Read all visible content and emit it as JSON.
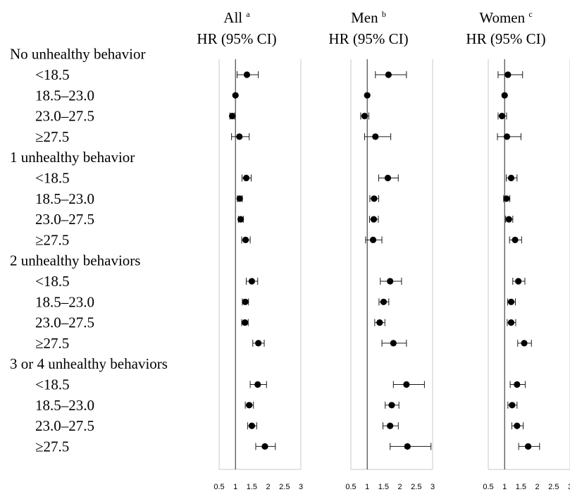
{
  "chart_data": {
    "type": "forest",
    "panels": [
      {
        "name": "All",
        "superscript": "a",
        "subtitle": "HR (95% CI)"
      },
      {
        "name": "Men",
        "superscript": "b",
        "subtitle": "HR (95% CI)"
      },
      {
        "name": "Women",
        "superscript": "c",
        "subtitle": "HR (95% CI)"
      }
    ],
    "x_ticks": [
      "0.5",
      "1",
      "1.5",
      "2",
      "2.5",
      "3"
    ],
    "xlim": [
      0.5,
      3
    ],
    "reference_line": 1,
    "groups": [
      {
        "label": "No unhealthy behavior",
        "rows": [
          {
            "label": "<18.5",
            "values": [
              [
                1.35,
                1.05,
                1.7
              ],
              [
                1.65,
                1.25,
                2.2
              ],
              [
                1.1,
                0.8,
                1.55
              ]
            ]
          },
          {
            "label": "18.5–23.0",
            "values": [
              [
                1.0,
                1.0,
                1.0
              ],
              [
                1.0,
                1.0,
                1.0
              ],
              [
                1.0,
                1.0,
                1.0
              ]
            ]
          },
          {
            "label": "23.0–27.5",
            "values": [
              [
                0.9,
                0.83,
                0.97
              ],
              [
                0.92,
                0.8,
                1.05
              ],
              [
                0.92,
                0.8,
                1.06
              ]
            ]
          },
          {
            "label": "≥27.5",
            "values": [
              [
                1.12,
                0.88,
                1.42
              ],
              [
                1.25,
                0.92,
                1.72
              ],
              [
                1.07,
                0.78,
                1.5
              ]
            ]
          }
        ]
      },
      {
        "label": "1 unhealthy behavior",
        "rows": [
          {
            "label": "<18.5",
            "values": [
              [
                1.33,
                1.2,
                1.48
              ],
              [
                1.63,
                1.35,
                1.95
              ],
              [
                1.2,
                1.05,
                1.38
              ]
            ]
          },
          {
            "label": "18.5–23.0",
            "values": [
              [
                1.13,
                1.06,
                1.21
              ],
              [
                1.21,
                1.08,
                1.35
              ],
              [
                1.06,
                0.97,
                1.16
              ]
            ]
          },
          {
            "label": "23.0–27.5",
            "values": [
              [
                1.16,
                1.09,
                1.24
              ],
              [
                1.2,
                1.07,
                1.34
              ],
              [
                1.13,
                1.03,
                1.25
              ]
            ]
          },
          {
            "label": "≥27.5",
            "values": [
              [
                1.31,
                1.19,
                1.45
              ],
              [
                1.18,
                0.95,
                1.45
              ],
              [
                1.32,
                1.15,
                1.52
              ]
            ]
          }
        ]
      },
      {
        "label": "2 unhealthy behaviors",
        "rows": [
          {
            "label": "<18.5",
            "values": [
              [
                1.5,
                1.33,
                1.68
              ],
              [
                1.7,
                1.4,
                2.05
              ],
              [
                1.42,
                1.25,
                1.62
              ]
            ]
          },
          {
            "label": "18.5–23.0",
            "values": [
              [
                1.3,
                1.21,
                1.4
              ],
              [
                1.5,
                1.36,
                1.66
              ],
              [
                1.2,
                1.09,
                1.33
              ]
            ]
          },
          {
            "label": "23.0–27.5",
            "values": [
              [
                1.29,
                1.19,
                1.39
              ],
              [
                1.38,
                1.23,
                1.54
              ],
              [
                1.2,
                1.08,
                1.34
              ]
            ]
          },
          {
            "label": "≥27.5",
            "values": [
              [
                1.7,
                1.53,
                1.88
              ],
              [
                1.8,
                1.45,
                2.2
              ],
              [
                1.6,
                1.4,
                1.82
              ]
            ]
          }
        ]
      },
      {
        "label": "3 or 4 unhealthy behaviors",
        "rows": [
          {
            "label": "<18.5",
            "values": [
              [
                1.68,
                1.45,
                1.95
              ],
              [
                2.2,
                1.8,
                2.75
              ],
              [
                1.38,
                1.17,
                1.63
              ]
            ]
          },
          {
            "label": "18.5–23.0",
            "values": [
              [
                1.42,
                1.3,
                1.55
              ],
              [
                1.75,
                1.55,
                1.97
              ],
              [
                1.23,
                1.1,
                1.38
              ]
            ]
          },
          {
            "label": "23.0–27.5",
            "values": [
              [
                1.5,
                1.37,
                1.65
              ],
              [
                1.7,
                1.48,
                1.95
              ],
              [
                1.38,
                1.22,
                1.57
              ]
            ]
          },
          {
            "label": "≥27.5",
            "values": [
              [
                1.9,
                1.62,
                2.22
              ],
              [
                2.23,
                1.7,
                2.95
              ],
              [
                1.72,
                1.43,
                2.07
              ]
            ]
          }
        ]
      }
    ]
  },
  "colors": {
    "point": "#000000",
    "error_bar": "#1a1a1a",
    "reference_line": "#222222",
    "frame": "#c8c8c8"
  }
}
